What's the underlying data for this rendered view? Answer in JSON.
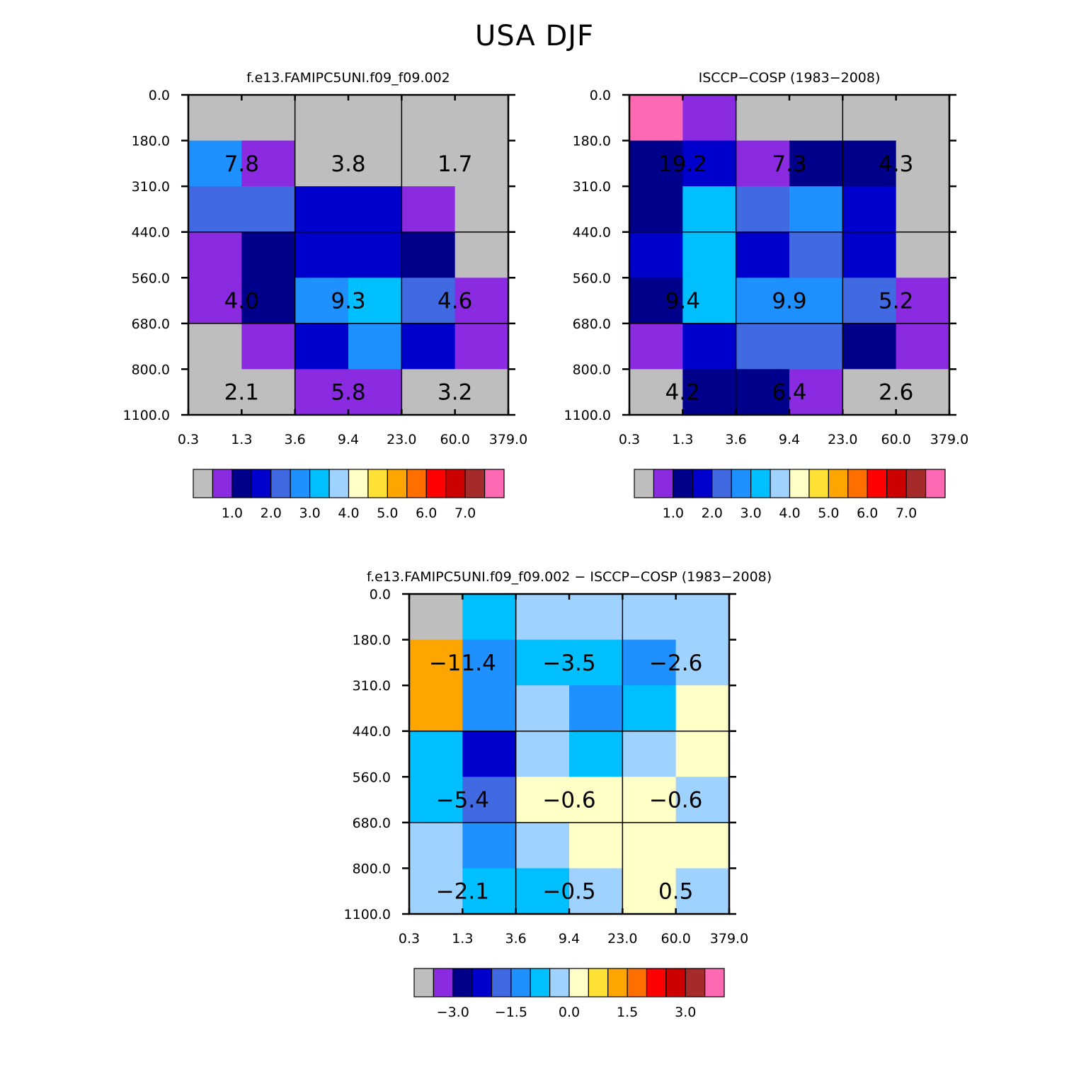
{
  "title": "USA DJF",
  "colorbars": {
    "abs": {
      "colors": [
        "#bebebe",
        "#8a2be2",
        "#00008b",
        "#0000cd",
        "#4169e1",
        "#1e90ff",
        "#00bfff",
        "#a0d2ff",
        "#ffffc8",
        "#ffe135",
        "#ffa500",
        "#ff6f00",
        "#ff0000",
        "#cd0000",
        "#a52a2a",
        "#ff69b4"
      ],
      "labels": [
        "1.0",
        "2.0",
        "3.0",
        "4.0",
        "5.0",
        "6.0",
        "7.0"
      ]
    },
    "diff": {
      "colors": [
        "#bebebe",
        "#8a2be2",
        "#00008b",
        "#0000cd",
        "#4169e1",
        "#1e90ff",
        "#00bfff",
        "#a0d2ff",
        "#ffffc8",
        "#ffe135",
        "#ffa500",
        "#ff6f00",
        "#ff0000",
        "#cd0000",
        "#a52a2a",
        "#ff69b4"
      ],
      "labels": [
        "−3.0",
        "−1.5",
        "0.0",
        "1.5",
        "3.0"
      ]
    }
  },
  "chart_data": [
    {
      "type": "heatmap",
      "id": "model",
      "title": "f.e13.FAMIPC5UNI.f09_f09.002",
      "xlabel": "",
      "ylabel": "",
      "x_ticks": [
        "0.3",
        "1.3",
        "3.6",
        "9.4",
        "23.0",
        "60.0",
        "379.0"
      ],
      "y_ticks": [
        "0.0",
        "180.0",
        "310.0",
        "440.0",
        "560.0",
        "680.0",
        "800.0",
        "1100.0"
      ],
      "cells": [
        [
          0,
          0,
          0,
          0,
          0,
          0
        ],
        [
          5,
          1,
          0,
          0,
          0,
          0
        ],
        [
          4,
          4,
          3,
          3,
          1,
          0
        ],
        [
          1,
          2,
          3,
          3,
          2,
          0
        ],
        [
          1,
          2,
          5,
          6,
          4,
          1
        ],
        [
          0,
          1,
          3,
          5,
          3,
          1
        ],
        [
          0,
          0,
          1,
          1,
          0,
          0
        ]
      ],
      "block_values": [
        [
          "7.8",
          "3.8",
          "1.7"
        ],
        [
          "4.0",
          "9.3",
          "4.6"
        ],
        [
          "2.1",
          "5.8",
          "3.2"
        ]
      ]
    },
    {
      "type": "heatmap",
      "id": "obs",
      "title": "ISCCP−COSP (1983−2008)",
      "xlabel": "",
      "ylabel": "",
      "x_ticks": [
        "0.3",
        "1.3",
        "3.6",
        "9.4",
        "23.0",
        "60.0",
        "379.0"
      ],
      "y_ticks": [
        "0.0",
        "180.0",
        "310.0",
        "440.0",
        "560.0",
        "680.0",
        "800.0",
        "1100.0"
      ],
      "cells": [
        [
          15,
          1,
          0,
          0,
          0,
          0
        ],
        [
          2,
          3,
          1,
          2,
          2,
          0
        ],
        [
          2,
          6,
          4,
          5,
          3,
          0
        ],
        [
          3,
          6,
          3,
          4,
          3,
          0
        ],
        [
          2,
          6,
          5,
          5,
          4,
          1
        ],
        [
          1,
          3,
          4,
          4,
          2,
          1
        ],
        [
          0,
          2,
          2,
          1,
          0,
          0
        ]
      ],
      "block_values": [
        [
          "19.2",
          "7.3",
          "4.3"
        ],
        [
          "9.4",
          "9.9",
          "5.2"
        ],
        [
          "4.2",
          "6.4",
          "2.6"
        ]
      ]
    },
    {
      "type": "heatmap",
      "id": "diff",
      "title": "f.e13.FAMIPC5UNI.f09_f09.002 − ISCCP−COSP (1983−2008)",
      "xlabel": "",
      "ylabel": "",
      "x_ticks": [
        "0.3",
        "1.3",
        "3.6",
        "9.4",
        "23.0",
        "60.0",
        "379.0"
      ],
      "y_ticks": [
        "0.0",
        "180.0",
        "310.0",
        "440.0",
        "560.0",
        "680.0",
        "800.0",
        "1100.0"
      ],
      "cells": [
        [
          0,
          6,
          7,
          7,
          7,
          7
        ],
        [
          10,
          5,
          6,
          6,
          5,
          7
        ],
        [
          10,
          5,
          7,
          5,
          6,
          8
        ],
        [
          6,
          3,
          7,
          6,
          7,
          8
        ],
        [
          6,
          4,
          8,
          8,
          8,
          7
        ],
        [
          7,
          5,
          7,
          8,
          8,
          8
        ],
        [
          7,
          6,
          6,
          7,
          8,
          7
        ]
      ],
      "block_values": [
        [
          "−11.4",
          "−3.5",
          "−2.6"
        ],
        [
          "−5.4",
          "−0.6",
          "−0.6"
        ],
        [
          "−2.1",
          "−0.5",
          "0.5"
        ]
      ]
    }
  ]
}
